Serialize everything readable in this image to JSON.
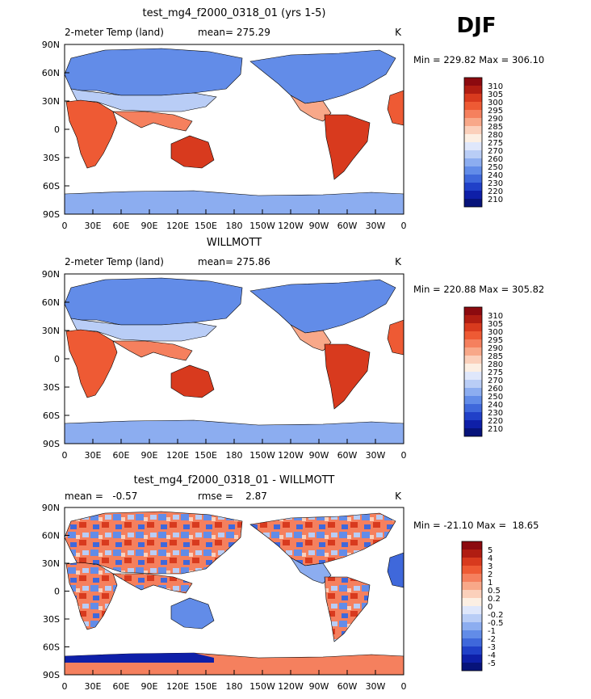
{
  "season": "DJF",
  "chart_data": [
    {
      "type": "heatmap",
      "title": "test_mg4_f2000_0318_01 (yrs 1-5)",
      "left_label": "2-meter Temp (land)",
      "center_label": "mean= 275.29",
      "right_label": "K",
      "stats": "Min = 229.82 Max = 306.10",
      "colorbar": {
        "levels": [
          "310",
          "305",
          "300",
          "295",
          "290",
          "285",
          "280",
          "275",
          "270",
          "260",
          "250",
          "240",
          "230",
          "220",
          "210"
        ],
        "colors": [
          "#8c0a0f",
          "#b01d12",
          "#d83a1e",
          "#ee5a34",
          "#f5805e",
          "#f8a889",
          "#fbd0bb",
          "#fcefe3",
          "#dfe7fb",
          "#b9cdf6",
          "#8cadf0",
          "#628ce8",
          "#3f68db",
          "#2040c8",
          "#0e1fa8",
          "#07137a"
        ]
      },
      "x_ticks": [
        "0",
        "30E",
        "60E",
        "90E",
        "120E",
        "150E",
        "180",
        "150W",
        "120W",
        "90W",
        "60W",
        "30W",
        "0"
      ],
      "y_ticks": [
        "90N",
        "60N",
        "30N",
        "0",
        "30S",
        "60S",
        "90S"
      ]
    },
    {
      "type": "heatmap",
      "title": "WILLMOTT",
      "left_label": "2-meter Temp (land)",
      "center_label": "mean= 275.86",
      "right_label": "K",
      "stats": "Min = 220.88 Max = 305.82",
      "colorbar": {
        "levels": [
          "310",
          "305",
          "300",
          "295",
          "290",
          "285",
          "280",
          "275",
          "270",
          "260",
          "250",
          "240",
          "230",
          "220",
          "210"
        ],
        "colors": [
          "#8c0a0f",
          "#b01d12",
          "#d83a1e",
          "#ee5a34",
          "#f5805e",
          "#f8a889",
          "#fbd0bb",
          "#fcefe3",
          "#dfe7fb",
          "#b9cdf6",
          "#8cadf0",
          "#628ce8",
          "#3f68db",
          "#2040c8",
          "#0e1fa8",
          "#07137a"
        ]
      },
      "x_ticks": [
        "0",
        "30E",
        "60E",
        "90E",
        "120E",
        "150E",
        "180",
        "150W",
        "120W",
        "90W",
        "60W",
        "30W",
        "0"
      ],
      "y_ticks": [
        "90N",
        "60N",
        "30N",
        "0",
        "30S",
        "60S",
        "90S"
      ]
    },
    {
      "type": "heatmap",
      "title": "test_mg4_f2000_0318_01 - WILLMOTT",
      "left_label": "mean =   -0.57",
      "center_label": "rmse =    2.87",
      "right_label": "K",
      "stats": "Min = -21.10 Max =  18.65",
      "colorbar": {
        "levels": [
          "5",
          "4",
          "3",
          "2",
          "1",
          "0.5",
          "0.2",
          "0",
          "-0.2",
          "-0.5",
          "-1",
          "-2",
          "-3",
          "-4",
          "-5"
        ],
        "colors": [
          "#8c0a0f",
          "#b01d12",
          "#d83a1e",
          "#ee5a34",
          "#f5805e",
          "#f8a889",
          "#fbd0bb",
          "#fcefe3",
          "#dfe7fb",
          "#b9cdf6",
          "#8cadf0",
          "#628ce8",
          "#3f68db",
          "#2040c8",
          "#0e1fa8",
          "#07137a"
        ]
      },
      "x_ticks": [
        "0",
        "30E",
        "60E",
        "90E",
        "120E",
        "150E",
        "180",
        "150W",
        "120W",
        "90W",
        "60W",
        "30W",
        "0"
      ],
      "y_ticks": [
        "90N",
        "60N",
        "30N",
        "0",
        "30S",
        "60S",
        "90S"
      ]
    }
  ]
}
